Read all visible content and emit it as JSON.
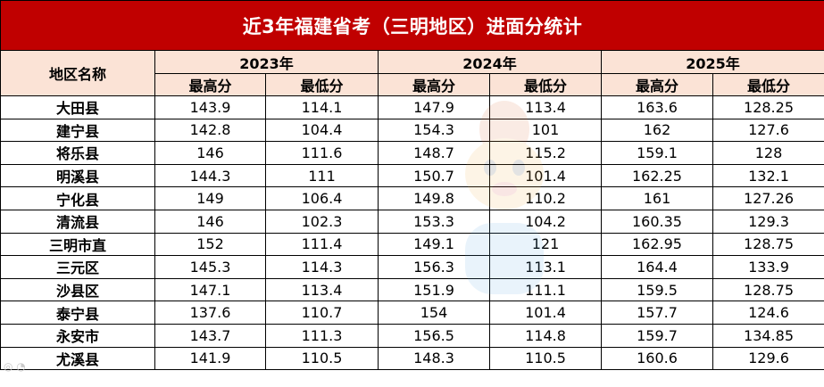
{
  "title": "近3年福建省考（三明地区）进面分统计",
  "header": {
    "region_label": "地区名称",
    "years": [
      "2023年",
      "2024年",
      "2025年"
    ],
    "max_label": "最高分",
    "min_label": "最低分"
  },
  "rows": [
    {
      "region": "大田县",
      "scores": [
        "143.9",
        "114.1",
        "147.9",
        "113.4",
        "163.6",
        "128.25"
      ]
    },
    {
      "region": "建宁县",
      "scores": [
        "142.8",
        "104.4",
        "154.3",
        "101",
        "162",
        "127.6"
      ]
    },
    {
      "region": "将乐县",
      "scores": [
        "146",
        "111.6",
        "148.7",
        "115.2",
        "159.1",
        "128"
      ]
    },
    {
      "region": "明溪县",
      "scores": [
        "144.3",
        "111",
        "150.7",
        "101.4",
        "162.25",
        "132.1"
      ]
    },
    {
      "region": "宁化县",
      "scores": [
        "149",
        "106.4",
        "149.8",
        "110.2",
        "161",
        "127.26"
      ]
    },
    {
      "region": "清流县",
      "scores": [
        "146",
        "102.3",
        "153.3",
        "104.2",
        "160.35",
        "129.3"
      ]
    },
    {
      "region": "三明市直",
      "scores": [
        "152",
        "111.4",
        "149.1",
        "121",
        "162.95",
        "128.75"
      ]
    },
    {
      "region": "三元区",
      "scores": [
        "145.3",
        "114.3",
        "156.3",
        "113.1",
        "164.4",
        "133.9"
      ]
    },
    {
      "region": "沙县区",
      "scores": [
        "147.1",
        "113.4",
        "151.9",
        "111.1",
        "159.5",
        "128.75"
      ]
    },
    {
      "region": "泰宁县",
      "scores": [
        "137.6",
        "110.7",
        "154",
        "101.4",
        "157.7",
        "124.6"
      ]
    },
    {
      "region": "永安市",
      "scores": [
        "143.7",
        "111.3",
        "156.5",
        "114.8",
        "159.7",
        "134.85"
      ]
    },
    {
      "region": "尤溪县",
      "scores": [
        "141.9",
        "110.5",
        "148.3",
        "110.5",
        "160.6",
        "129.6"
      ]
    }
  ],
  "colors": {
    "title_bg": "#c00000",
    "header_bg": "#fbe3d6"
  }
}
